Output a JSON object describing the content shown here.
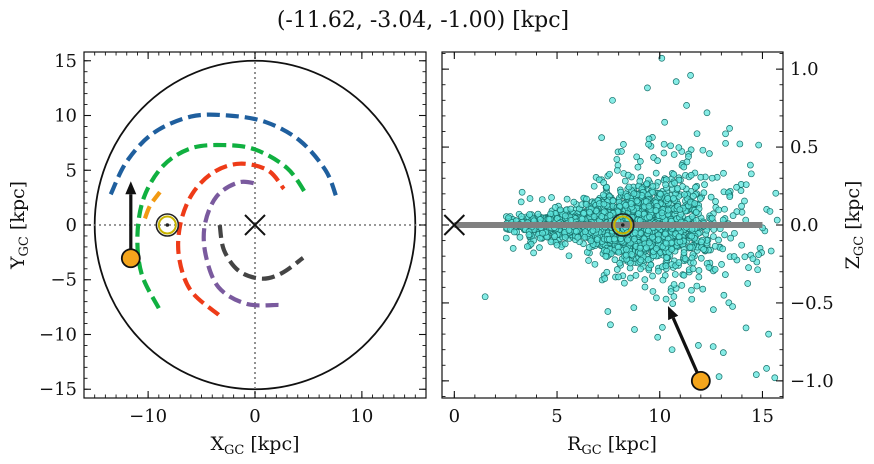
{
  "title": "(-11.62, -3.04, -1.00) [kpc]",
  "colors": {
    "arm_blue": "#1f5f9e",
    "arm_green": "#10b040",
    "arm_orange": "#f29a12",
    "arm_red": "#ee3b18",
    "arm_purple": "#7a5a9e",
    "arm_gray": "#444444",
    "star_fill": "#f4a51c",
    "scatter_fill": "#5ee6dd",
    "scatter_edge": "#18706a",
    "sun_ring": "#c8b400",
    "plane_line": "#808080"
  },
  "chart_data": [
    {
      "type": "line",
      "panel": "left",
      "xlabel": "X",
      "xlabel_sub": "GC",
      "xlabel_unit": " [kpc]",
      "ylabel": "Y",
      "ylabel_sub": "GC",
      "ylabel_unit": " [kpc]",
      "xlim": [
        -16,
        16
      ],
      "ylim": [
        -15.8,
        15.8
      ],
      "xticks": [
        -10,
        0,
        10
      ],
      "yticks": [
        -15,
        -10,
        -5,
        0,
        5,
        10,
        15
      ],
      "xtick_labels": [
        "−10",
        "0",
        "10"
      ],
      "ytick_labels": [
        "−15",
        "−10",
        "−5",
        "0",
        "5",
        "10",
        "15"
      ],
      "grid": false,
      "reference_lines": {
        "x": 0,
        "y": 0,
        "style": "dotted"
      },
      "boundary_circle": {
        "center": [
          0,
          0
        ],
        "radius": 15
      },
      "galactic_center": [
        0,
        0
      ],
      "sun": [
        -8.2,
        0
      ],
      "object": {
        "x": -11.62,
        "y": -3.04
      },
      "motion_arrow": {
        "from": [
          -11.62,
          -3.04
        ],
        "to": [
          -11.62,
          4.0
        ]
      },
      "spiral_arms": [
        {
          "color_key": "arm_blue",
          "points": [
            [
              -13.5,
              2.8
            ],
            [
              -12.0,
              5.8
            ],
            [
              -9.5,
              8.4
            ],
            [
              -6.0,
              9.9
            ],
            [
              -2.5,
              10.0
            ],
            [
              1.0,
              9.4
            ],
            [
              4.2,
              7.7
            ],
            [
              6.6,
              5.0
            ],
            [
              7.6,
              2.6
            ]
          ]
        },
        {
          "color_key": "arm_green",
          "points": [
            [
              -9.0,
              -7.6
            ],
            [
              -10.6,
              -4.5
            ],
            [
              -11.0,
              -1.0
            ],
            [
              -10.4,
              2.5
            ],
            [
              -8.6,
              5.4
            ],
            [
              -6.0,
              7.0
            ],
            [
              -3.0,
              7.3
            ],
            [
              0.0,
              6.9
            ],
            [
              3.0,
              5.2
            ],
            [
              4.8,
              2.8
            ]
          ]
        },
        {
          "color_key": "arm_orange",
          "points": [
            [
              -10.3,
              0.6
            ],
            [
              -9.8,
              1.8
            ],
            [
              -8.9,
              3.0
            ]
          ]
        },
        {
          "color_key": "arm_red",
          "points": [
            [
              -3.4,
              -8.2
            ],
            [
              -6.0,
              -6.0
            ],
            [
              -7.1,
              -3.0
            ],
            [
              -7.0,
              0.0
            ],
            [
              -5.9,
              2.8
            ],
            [
              -3.9,
              4.8
            ],
            [
              -1.4,
              5.6
            ],
            [
              1.2,
              5.0
            ],
            [
              2.7,
              3.3
            ]
          ]
        },
        {
          "color_key": "arm_purple",
          "points": [
            [
              2.2,
              -7.3
            ],
            [
              -0.8,
              -7.2
            ],
            [
              -3.4,
              -5.7
            ],
            [
              -4.6,
              -2.8
            ],
            [
              -4.7,
              0.0
            ],
            [
              -3.6,
              2.6
            ],
            [
              -1.5,
              3.9
            ],
            [
              0.4,
              3.7
            ]
          ]
        },
        {
          "color_key": "arm_gray",
          "points": [
            [
              -3.3,
              0.0
            ],
            [
              -2.9,
              -2.3
            ],
            [
              -1.5,
              -4.2
            ],
            [
              0.6,
              -4.9
            ],
            [
              2.5,
              -4.4
            ],
            [
              4.5,
              -3.0
            ]
          ]
        }
      ]
    },
    {
      "type": "scatter",
      "panel": "right",
      "xlabel": "R",
      "xlabel_sub": "GC",
      "xlabel_unit": " [kpc]",
      "ylabel": "Z",
      "ylabel_sub": "GC",
      "ylabel_unit": " [kpc]",
      "ylabel_position": "right",
      "xlim": [
        -0.6,
        16.0
      ],
      "ylim": [
        -1.11,
        1.11
      ],
      "xticks": [
        0,
        5,
        10,
        15
      ],
      "yticks": [
        -1.0,
        -0.5,
        0.0,
        0.5,
        1.0
      ],
      "xtick_labels": [
        "0",
        "5",
        "10",
        "15"
      ],
      "ytick_labels": [
        "−1.0",
        "−0.5",
        "0.0",
        "0.5",
        "1.0"
      ],
      "grid": false,
      "galactic_plane": {
        "from_x": 0,
        "to_x": 15,
        "z": 0
      },
      "galactic_center": [
        0,
        0
      ],
      "sun": [
        8.2,
        0
      ],
      "object": {
        "R": 12.0,
        "Z": -1.0
      },
      "motion_arrow": {
        "from": [
          12.0,
          -1.0
        ],
        "to": [
          10.4,
          -0.52
        ]
      },
      "sample": {
        "count": 2600,
        "r_center": 8.2,
        "r_spread": 2.0,
        "z_spread_base": 0.04,
        "z_flare": 0.14
      },
      "outliers": [
        [
          10.1,
          1.07
        ],
        [
          11.5,
          0.96
        ],
        [
          9.4,
          0.88
        ],
        [
          10.8,
          0.92
        ],
        [
          7.7,
          0.8
        ],
        [
          12.3,
          0.72
        ],
        [
          13.9,
          0.52
        ],
        [
          1.5,
          -0.46
        ],
        [
          7.6,
          -0.64
        ],
        [
          10.6,
          -0.8
        ],
        [
          12.6,
          -0.78
        ],
        [
          14.7,
          -0.96
        ],
        [
          15.2,
          -0.92
        ],
        [
          15.6,
          -0.98
        ],
        [
          9.9,
          -0.72
        ],
        [
          14.2,
          -0.66
        ],
        [
          13.4,
          0.62
        ],
        [
          12.1,
          0.48
        ],
        [
          15.3,
          -0.7
        ],
        [
          3.3,
          0.21
        ]
      ]
    }
  ]
}
